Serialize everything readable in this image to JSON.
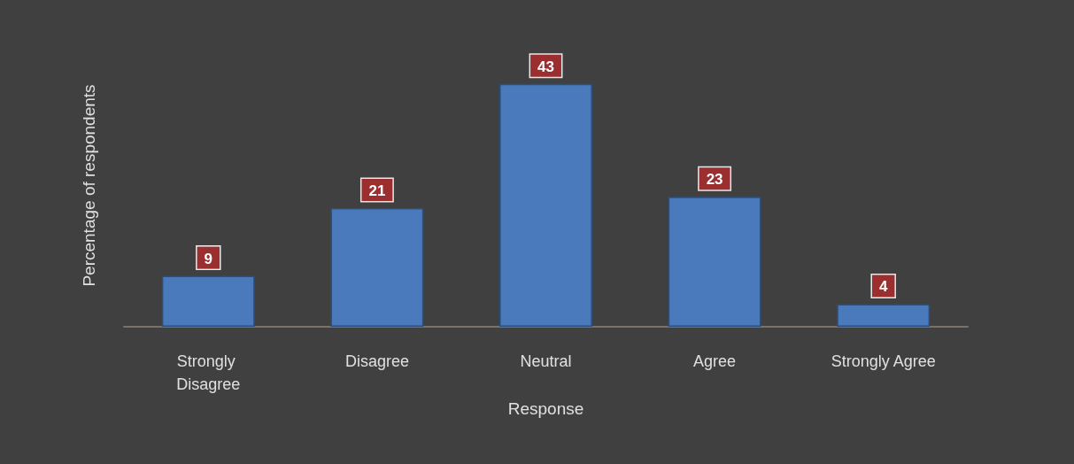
{
  "chart_data": {
    "type": "bar",
    "xlabel": "Response",
    "ylabel": "Percentage of respondents",
    "categories": [
      "Strongly Disagree",
      "Disagree",
      "Neutral",
      "Agree",
      "Strongly Agree"
    ],
    "values": [
      9,
      21,
      43,
      23,
      4
    ],
    "color": "#4a7abb",
    "data_labels": true,
    "tick_labels": "x"
  }
}
